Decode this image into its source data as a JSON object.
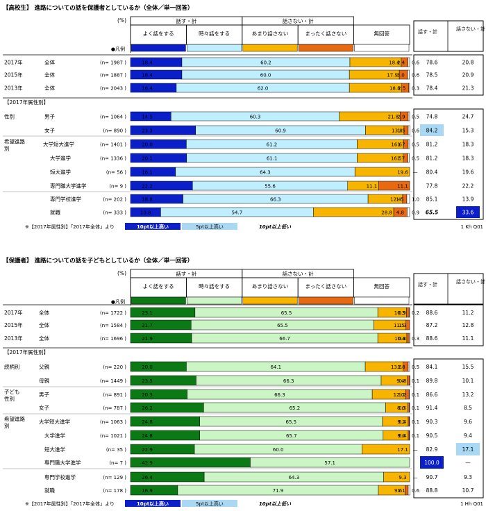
{
  "colors": {
    "hs_speak_most": "#0A1FC8",
    "hs_speak_some": "#BFEFFF",
    "gd_speak_most": "#0C7A14",
    "gd_speak_some": "#CCF5C6",
    "not_much": "#F7B500",
    "not_at_all": "#E86A10",
    "hi10_hs": "#0A1FC8",
    "hi10_gd": "#0A1FC8",
    "hi5": "#A8D8F4"
  },
  "chart_data": [
    {
      "type": "bar",
      "stacked": true,
      "orientation": "horizontal",
      "title": "【高校生】 進路についての話を保護者としているか（全体／単一回答）",
      "pct_label": "(%)",
      "legend_label": "●凡例",
      "group_headers": {
        "speak": "話す・計",
        "not_speak": "話さない・計"
      },
      "categories_header": [
        "よく話をする",
        "時々話をする",
        "あまり話さない",
        "まったく話さない",
        "無回答"
      ],
      "total_headers": [
        "話す・計",
        "話さない・計"
      ],
      "section_label": "【2017年属性別】",
      "rows": [
        {
          "c1": "2017年",
          "c2": "全体",
          "n": "(n= 1987 )",
          "values": [
            18.4,
            60.2,
            18.4,
            2.4,
            0.6
          ],
          "speak_total": "78.6",
          "not_speak_total": "20.8"
        },
        {
          "c1": "2015年",
          "c2": "全体",
          "n": "(n= 1887 )",
          "values": [
            18.4,
            60.0,
            17.9,
            3.0,
            0.6
          ],
          "speak_total": "78.5",
          "not_speak_total": "20.9"
        },
        {
          "c1": "2013年",
          "c2": "全体",
          "n": "(n= 2043 )",
          "values": [
            16.4,
            62.0,
            18.8,
            2.5,
            0.3
          ],
          "speak_total": "78.4",
          "not_speak_total": "21.3"
        },
        {
          "c1": "性別",
          "c2": "男子",
          "n": "(n= 1064 )",
          "values": [
            14.5,
            60.3,
            21.8,
            2.9,
            0.5
          ],
          "speak_total": "74.8",
          "not_speak_total": "24.7"
        },
        {
          "c1": "",
          "c2": "女子",
          "n": "(n= 890 )",
          "values": [
            23.3,
            60.9,
            13.8,
            1.5,
            0.6
          ],
          "speak_total": "84.2",
          "not_speak_total": "15.3"
        },
        {
          "c1": "希望進路",
          "c1b": "別",
          "c2": "大学短大進学",
          "n": "(n= 1401 )",
          "values": [
            20.0,
            61.2,
            16.6,
            1.7,
            0.5
          ],
          "speak_total": "81.2",
          "not_speak_total": "18.3"
        },
        {
          "c1": "",
          "c2": "大学進学",
          "n": "(n= 1336 )",
          "values": [
            20.1,
            61.1,
            16.5,
            1.7,
            0.5
          ],
          "speak_total": "81.2",
          "not_speak_total": "18.3"
        },
        {
          "c1": "",
          "c2": "短大進学",
          "n": "(n= 56 )",
          "values": [
            16.1,
            64.3,
            19.6,
            0.0,
            0.0
          ],
          "speak_total": "80.4",
          "not_speak_total": "19.6"
        },
        {
          "c1": "",
          "c2": "専門職大学進学",
          "n": "(n= 9 )",
          "values": [
            22.2,
            55.6,
            11.1,
            11.1,
            0.0
          ],
          "speak_total": "77.8",
          "not_speak_total": "22.2"
        },
        {
          "c1": "",
          "c2": "専門学校進学",
          "n": "(n= 202 )",
          "values": [
            18.8,
            66.3,
            12.4,
            1.5,
            1.0
          ],
          "speak_total": "85.1",
          "not_speak_total": "13.9"
        },
        {
          "c1": "",
          "c2": "就職",
          "n": "(n= 333 )",
          "values": [
            10.8,
            54.7,
            28.8,
            4.8,
            0.9
          ],
          "speak_total": "65.5",
          "not_speak_total": "33.6"
        }
      ],
      "footnote": "※【2017年属性別】「2017年全体」より",
      "key_10_high": "10pt以上高い",
      "key_5_high": "5pt以上高い",
      "key_10_low": "10pt以上低い",
      "code": "1 Kh Q01"
    },
    {
      "type": "bar",
      "stacked": true,
      "orientation": "horizontal",
      "title": "【保護者】 進路についての話を子どもとしているか（全体／単一回答）",
      "pct_label": "(%)",
      "legend_label": "●凡例",
      "group_headers": {
        "speak": "話す・計",
        "not_speak": "話さない・計"
      },
      "categories_header": [
        "よく話をする",
        "時々話をする",
        "あまり話さない",
        "まったく話さない",
        "無回答"
      ],
      "total_headers": [
        "話す・計",
        "話さない・計"
      ],
      "section_label": "【2017年属性別】",
      "rows": [
        {
          "c1": "2017年",
          "c2": "全体",
          "n": "(n= 1722 )",
          "values": [
            23.1,
            65.5,
            10.3,
            0.9,
            0.2
          ],
          "speak_total": "88.6",
          "not_speak_total": "11.2"
        },
        {
          "c1": "2015年",
          "c2": "全体",
          "n": "(n= 1584 )",
          "values": [
            21.7,
            65.5,
            11.5,
            1.3,
            0.0
          ],
          "speak_total": "87.2",
          "not_speak_total": "12.8"
        },
        {
          "c1": "2013年",
          "c2": "全体",
          "n": "(n= 1696 )",
          "values": [
            21.9,
            66.7,
            10.4,
            0.8,
            0.3
          ],
          "speak_total": "88.6",
          "not_speak_total": "11.1"
        },
        {
          "c1": "続柄別",
          "c2": "父親",
          "n": "(n= 220 )",
          "values": [
            20.0,
            64.1,
            13.6,
            1.8,
            0.5
          ],
          "speak_total": "84.1",
          "not_speak_total": "15.5"
        },
        {
          "c1": "",
          "c2": "母親",
          "n": "(n= 1449 )",
          "values": [
            23.5,
            66.3,
            9.4,
            0.8,
            0.1
          ],
          "speak_total": "89.8",
          "not_speak_total": "10.1"
        },
        {
          "c1": "子ども",
          "c1b": "性別",
          "c2": "男子",
          "n": "(n= 891 )",
          "values": [
            20.3,
            66.3,
            12.0,
            1.2,
            0.1
          ],
          "speak_total": "86.6",
          "not_speak_total": "13.2"
        },
        {
          "c1": "",
          "c2": "女子",
          "n": "(n= 787 )",
          "values": [
            26.2,
            65.2,
            8.0,
            0.5,
            0.1
          ],
          "speak_total": "91.4",
          "not_speak_total": "8.5"
        },
        {
          "c1": "希望進路",
          "c1b": "別",
          "c2": "大学短大進学",
          "n": "(n= 1063 )",
          "values": [
            24.8,
            65.5,
            9.2,
            0.4,
            0.1
          ],
          "speak_total": "90.3",
          "not_speak_total": "9.6"
        },
        {
          "c1": "",
          "c2": "大学進学",
          "n": "(n= 1021 )",
          "values": [
            24.8,
            65.7,
            9.0,
            0.4,
            0.1
          ],
          "speak_total": "90.5",
          "not_speak_total": "9.4"
        },
        {
          "c1": "",
          "c2": "短大進学",
          "n": "(n= 35 )",
          "values": [
            22.9,
            60.0,
            17.1,
            0.0,
            0.0
          ],
          "speak_total": "82.9",
          "not_speak_total": "17.1"
        },
        {
          "c1": "",
          "c2": "専門職大学進学",
          "n": "(n= 7 )",
          "values": [
            42.9,
            57.1,
            0.0,
            0.0,
            0.0
          ],
          "speak_total": "100.0",
          "not_speak_total": "—"
        },
        {
          "c1": "",
          "c2": "専門学校進学",
          "n": "(n= 129 )",
          "values": [
            26.4,
            64.3,
            9.3,
            0.0,
            0.0
          ],
          "speak_total": "90.7",
          "not_speak_total": "9.3"
        },
        {
          "c1": "",
          "c2": "就職",
          "n": "(n= 178 )",
          "values": [
            16.9,
            71.9,
            9.6,
            1.1,
            0.6
          ],
          "speak_total": "88.8",
          "not_speak_total": "10.7"
        }
      ],
      "footnote": "※【2017年属性別】「2017年全体」より",
      "key_10_high": "10pt以上高い",
      "key_5_high": "5pt以上高い",
      "key_10_low": "10pt以上低い",
      "code": "1 Hh Q01"
    }
  ],
  "highlights": {
    "hs": {
      "r4c0": "hi5",
      "r10c0": "lo10",
      "r10c1": "hi10"
    },
    "gd": {
      "r9c1": "hi5",
      "r10c0": "hi10"
    }
  },
  "dash_mark": "—"
}
